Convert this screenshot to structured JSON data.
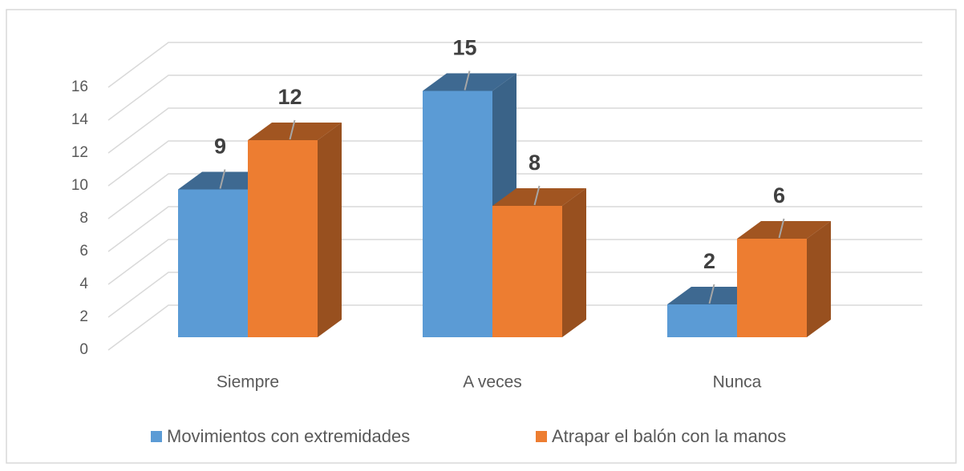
{
  "chart_data": {
    "type": "bar3d",
    "categories": [
      "Siempre",
      "A veces",
      "Nunca"
    ],
    "series": [
      {
        "name": "Movimientos con extremidades",
        "color": "#5b9bd5",
        "values": [
          9,
          15,
          2
        ]
      },
      {
        "name": "Atrapar el balón con la manos",
        "color": "#ed7d31",
        "values": [
          12,
          8,
          6
        ]
      }
    ],
    "ylim": [
      0,
      16
    ],
    "yticks": [
      0,
      2,
      4,
      6,
      8,
      10,
      12,
      14,
      16
    ],
    "grid": true,
    "legend": "bottom"
  }
}
